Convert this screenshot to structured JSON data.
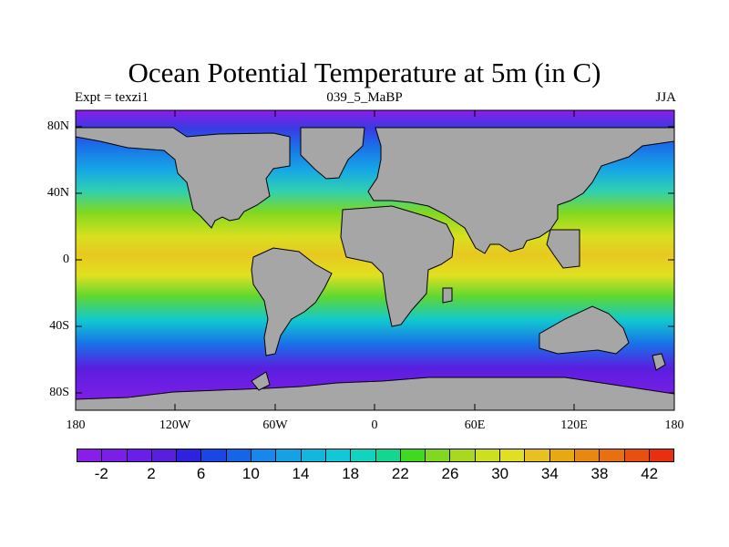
{
  "title": "Ocean Potential Temperature at 5m (in C)",
  "subtitle_left": "Expt = texzi1",
  "subtitle_center": "039_5_MaBP",
  "subtitle_right": "JJA",
  "lat_labels": [
    "80N",
    "40N",
    "0",
    "40S",
    "80S"
  ],
  "lon_labels": [
    "180",
    "120W",
    "60W",
    "0",
    "60E",
    "120E",
    "180"
  ],
  "colorbar": {
    "labels": [
      "-2",
      "2",
      "6",
      "10",
      "14",
      "18",
      "22",
      "26",
      "30",
      "34",
      "38",
      "42"
    ],
    "colors": [
      "#8a1ee8",
      "#7a1ee8",
      "#6a1ee8",
      "#5a1ee0",
      "#2e22e0",
      "#1a46e6",
      "#1466e6",
      "#1886ea",
      "#16a0e6",
      "#10b8e0",
      "#10c8d8",
      "#10d4c0",
      "#10d890",
      "#40d820",
      "#80d820",
      "#a8d820",
      "#cce020",
      "#e0e020",
      "#e8c020",
      "#e8a810",
      "#e88810",
      "#e87010",
      "#e85010",
      "#e83010"
    ]
  },
  "colors": {
    "land": "#a6a6a6",
    "background": "#ffffff"
  }
}
